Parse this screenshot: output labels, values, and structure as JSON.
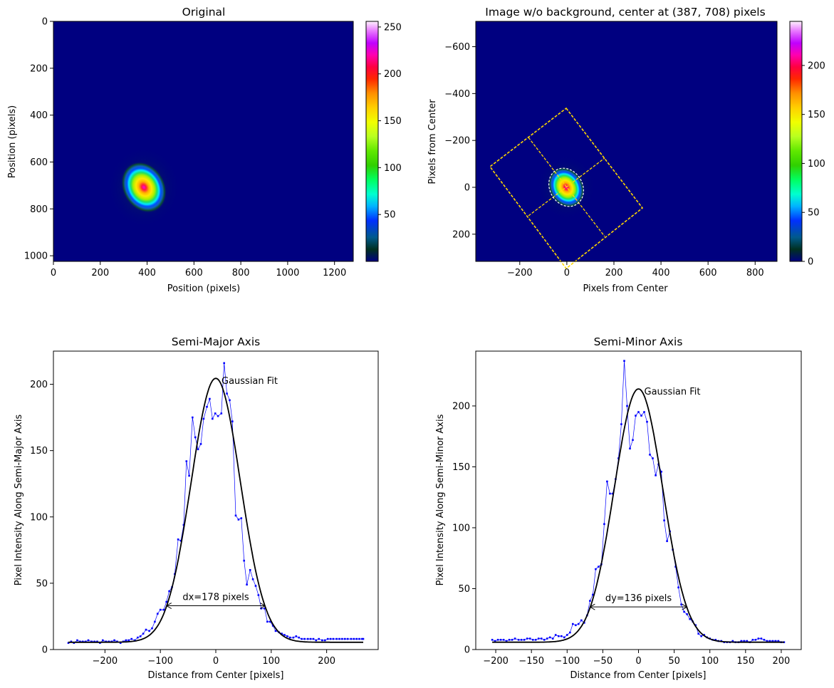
{
  "chart_data": [
    {
      "type": "heatmap",
      "title": "Original",
      "xlabel": "Position (pixels)",
      "ylabel": "Position (pixels)",
      "xlim": [
        0,
        1280
      ],
      "ylim": [
        1024,
        0
      ],
      "x_ticks": [
        0,
        200,
        400,
        600,
        800,
        1000,
        1200
      ],
      "y_ticks": [
        0,
        200,
        400,
        600,
        800,
        1000
      ],
      "colorbar_ticks": [
        50,
        100,
        150,
        200,
        250
      ],
      "colorbar_range": [
        0,
        256
      ],
      "colormap": "gist_ncar",
      "beam": {
        "center_x": 387,
        "center_y": 708,
        "peak": 256
      }
    },
    {
      "type": "heatmap",
      "title": "Image w/o background, center at (387, 708) pixels",
      "xlabel": "Pixels from Center",
      "ylabel": "Pixels from Center",
      "xlim": [
        -387,
        893
      ],
      "ylim": [
        316,
        -708
      ],
      "x_ticks": [
        -200,
        0,
        200,
        400,
        600,
        800
      ],
      "y_ticks": [
        -600,
        -400,
        -200,
        0,
        200
      ],
      "colorbar_ticks": [
        0,
        50,
        100,
        150,
        200
      ],
      "colorbar_range": [
        0,
        245
      ],
      "colormap": "gist_ncar",
      "overlay_color": "#ffd800"
    },
    {
      "type": "line",
      "title": "Semi-Major Axis",
      "xlabel": "Distance from Center [pixels]",
      "ylabel": "Pixel Intensity Along Semi-Major Axis",
      "xlim": [
        -293,
        293
      ],
      "ylim": [
        0,
        225
      ],
      "x_ticks": [
        -200,
        -100,
        0,
        100,
        200
      ],
      "y_ticks": [
        0,
        50,
        100,
        150,
        200
      ],
      "fit_label": "Gaussian Fit",
      "width_label": "dx=178 pixels",
      "width_arrow": {
        "x0": -89,
        "x1": 89,
        "y": 33
      },
      "series": [
        {
          "name": "Gaussian Fit",
          "kind": "gaussian",
          "amplitude": 199,
          "baseline": 5.5,
          "center": 0,
          "sigma": 44.5,
          "color": "#000000"
        },
        {
          "kind": "data",
          "color": "#0000ff",
          "x": [
            -266,
            -261,
            -256,
            -250,
            -245,
            -240,
            -235,
            -230,
            -224,
            -219,
            -214,
            -209,
            -204,
            -198,
            -193,
            -188,
            -183,
            -178,
            -172,
            -167,
            -162,
            -157,
            -152,
            -146,
            -141,
            -136,
            -131,
            -126,
            -120,
            -115,
            -110,
            -105,
            -100,
            -94,
            -89,
            -84,
            -79,
            -74,
            -68,
            -63,
            -58,
            -53,
            -48,
            -42,
            -37,
            -32,
            -27,
            -22,
            -16,
            -11,
            -6,
            -1,
            4,
            10,
            15,
            20,
            25,
            30,
            36,
            41,
            46,
            51,
            56,
            62,
            67,
            72,
            77,
            82,
            88,
            93,
            98,
            103,
            108,
            114,
            119,
            124,
            129,
            134,
            140,
            145,
            150,
            155,
            160,
            166,
            171,
            176,
            181,
            186,
            192,
            197,
            202,
            207,
            212,
            218,
            223,
            228,
            233,
            238,
            244,
            249,
            254,
            259,
            264,
            266
          ],
          "y": [
            5,
            6,
            5,
            7,
            6,
            6,
            6,
            7,
            6,
            6,
            6,
            5,
            7,
            6,
            6,
            6,
            7,
            6,
            5,
            6,
            7,
            7,
            8,
            7,
            9,
            10,
            12,
            15,
            14,
            16,
            21,
            27,
            30,
            30,
            36,
            44,
            47,
            57,
            83,
            82,
            94,
            142,
            131,
            175,
            160,
            151,
            155,
            174,
            183,
            189,
            174,
            178,
            176,
            178,
            216,
            193,
            188,
            172,
            101,
            98,
            99,
            67,
            49,
            60,
            53,
            48,
            41,
            31,
            31,
            21,
            21,
            18,
            14,
            13,
            12,
            11,
            10,
            9,
            9,
            10,
            9,
            8,
            8,
            8,
            8,
            8,
            7,
            8,
            7,
            7,
            8,
            8,
            8,
            8,
            8,
            8,
            8,
            8,
            8,
            8,
            8,
            8,
            8,
            8
          ]
        }
      ]
    },
    {
      "type": "line",
      "title": "Semi-Minor Axis",
      "xlabel": "Distance from Center [pixels]",
      "ylabel": "Pixel Intensity Along Semi-Minor Axis",
      "xlim": [
        -228,
        228
      ],
      "ylim": [
        0,
        245
      ],
      "x_ticks": [
        -200,
        -150,
        -100,
        -50,
        0,
        50,
        100,
        150,
        200
      ],
      "y_ticks": [
        0,
        50,
        100,
        150,
        200
      ],
      "fit_label": "Gaussian Fit",
      "width_label": "dy=136 pixels",
      "width_arrow": {
        "x0": -68,
        "x1": 68,
        "y": 35
      },
      "series": [
        {
          "name": "Gaussian Fit",
          "kind": "gaussian",
          "amplitude": 208,
          "baseline": 6,
          "center": 0,
          "sigma": 34,
          "color": "#000000"
        },
        {
          "kind": "data",
          "color": "#0000ff",
          "x": [
            -205,
            -201,
            -197,
            -193,
            -189,
            -185,
            -181,
            -177,
            -173,
            -168,
            -164,
            -160,
            -156,
            -152,
            -148,
            -144,
            -140,
            -136,
            -132,
            -128,
            -124,
            -120,
            -116,
            -112,
            -108,
            -104,
            -100,
            -96,
            -92,
            -88,
            -84,
            -80,
            -76,
            -72,
            -68,
            -64,
            -60,
            -56,
            -52,
            -48,
            -44,
            -40,
            -36,
            -32,
            -28,
            -24,
            -20,
            -16,
            -12,
            -8,
            -4,
            0,
            4,
            8,
            12,
            16,
            20,
            24,
            28,
            32,
            36,
            40,
            44,
            48,
            52,
            56,
            60,
            64,
            68,
            72,
            76,
            80,
            84,
            88,
            92,
            96,
            100,
            104,
            108,
            112,
            116,
            120,
            124,
            128,
            132,
            136,
            140,
            144,
            148,
            152,
            156,
            160,
            164,
            168,
            172,
            176,
            180,
            184,
            188,
            192,
            196,
            200,
            204
          ],
          "y": [
            8,
            7,
            8,
            8,
            8,
            7,
            8,
            8,
            9,
            8,
            8,
            8,
            9,
            9,
            8,
            8,
            9,
            9,
            8,
            9,
            10,
            9,
            12,
            11,
            11,
            10,
            12,
            14,
            21,
            20,
            21,
            24,
            22,
            28,
            40,
            45,
            66,
            68,
            70,
            103,
            138,
            128,
            128,
            140,
            157,
            185,
            237,
            200,
            165,
            172,
            192,
            195,
            192,
            195,
            187,
            160,
            157,
            143,
            152,
            146,
            106,
            89,
            97,
            82,
            68,
            51,
            37,
            31,
            29,
            25,
            23,
            20,
            13,
            11,
            12,
            10,
            9,
            8,
            8,
            7,
            7,
            6,
            6,
            6,
            7,
            6,
            6,
            7,
            7,
            7,
            6,
            8,
            8,
            9,
            9,
            8,
            7,
            7,
            7,
            7,
            7,
            6,
            6
          ]
        }
      ]
    }
  ]
}
